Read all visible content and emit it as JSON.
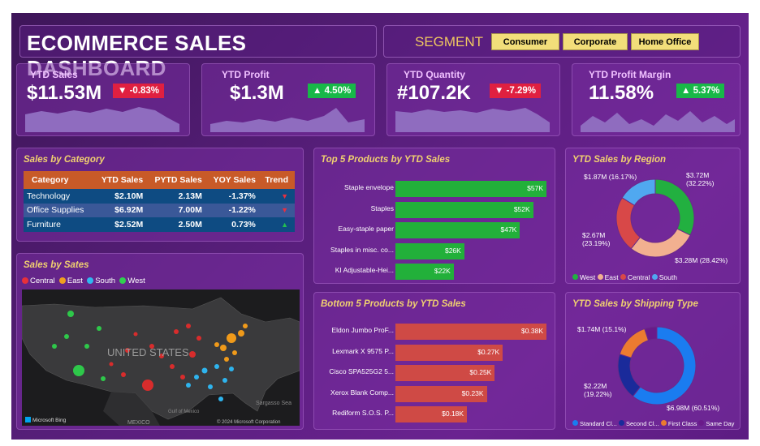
{
  "header": {
    "title": "ECOMMERCE SALES DASHBOARD"
  },
  "segment": {
    "label": "SEGMENT",
    "options": [
      "Consumer",
      "Corporate",
      "Home Office"
    ]
  },
  "kpis": [
    {
      "title": "YTD Sales",
      "value": "$11.53M",
      "change": "-0.83%",
      "direction": "down"
    },
    {
      "title": "YTD Profit",
      "value": "$1.3M",
      "change": "4.50%",
      "direction": "up"
    },
    {
      "title": "YTD Quantity",
      "value": "#107.2K",
      "change": "-7.29%",
      "direction": "down"
    },
    {
      "title": "YTD Profit Margin",
      "value": "11.58%",
      "change": "5.37%",
      "direction": "up"
    }
  ],
  "category": {
    "title": "Sales by Category",
    "headers": [
      "Category",
      "YTD Sales",
      "PYTD Sales",
      "YOY Sales",
      "Trend"
    ],
    "rows": [
      {
        "category": "Technology",
        "ytd": "$2.10M",
        "pytd": "2.13M",
        "yoy": "-1.37%",
        "trend": "down"
      },
      {
        "category": "Office Supplies",
        "ytd": "$6.92M",
        "pytd": "7.00M",
        "yoy": "-1.22%",
        "trend": "down"
      },
      {
        "category": "Furniture",
        "ytd": "$2.52M",
        "pytd": "2.50M",
        "yoy": "0.73%",
        "trend": "up"
      }
    ]
  },
  "states": {
    "title": "Sales by Sates",
    "legend": [
      {
        "name": "Central",
        "color": "#e8303a"
      },
      {
        "name": "East",
        "color": "#f0a020"
      },
      {
        "name": "South",
        "color": "#30b8f0"
      },
      {
        "name": "West",
        "color": "#30d050"
      }
    ],
    "map_labels": {
      "country": "UNITED STATES",
      "mexico": "MEXICO",
      "gulf": "Gulf of Mexico",
      "sea": "Sargasso Sea",
      "bing": "Microsoft Bing",
      "copyright": "© 2024 Microsoft Corporation"
    }
  },
  "top5": {
    "title": "Top 5 Products by YTD Sales",
    "chart_data": {
      "type": "bar",
      "categories": [
        "Staple envelope",
        "Staples",
        "Easy-staple paper",
        "Staples in misc. co...",
        "KI Adjustable-Hei..."
      ],
      "values": [
        57,
        52,
        47,
        26,
        22
      ],
      "value_labels": [
        "$57K",
        "$52K",
        "$47K",
        "$26K",
        "$22K"
      ],
      "unit": "K USD"
    }
  },
  "bottom5": {
    "title": "Bottom 5 Products by YTD Sales",
    "chart_data": {
      "type": "bar",
      "categories": [
        "Eldon Jumbo ProF...",
        "Lexmark X 9575 P...",
        "Cisco SPA525G2 5...",
        "Xerox Blank Comp...",
        "Rediform S.O.S. P..."
      ],
      "values": [
        0.38,
        0.27,
        0.25,
        0.23,
        0.18
      ],
      "value_labels": [
        "$0.38K",
        "$0.27K",
        "$0.25K",
        "$0.23K",
        "$0.18K"
      ],
      "unit": "K USD"
    }
  },
  "region": {
    "title": "YTD Sales by Region",
    "chart_data": {
      "type": "pie",
      "categories": [
        "West",
        "East",
        "Central",
        "South"
      ],
      "values": [
        3.72,
        3.28,
        2.67,
        1.87
      ],
      "percent": [
        32.22,
        28.42,
        23.19,
        16.17
      ],
      "colors": [
        "#22b040",
        "#f2b090",
        "#d84848",
        "#50a8f0"
      ]
    },
    "labels": {
      "west": "$3.72M",
      "west_pct": "(32.22%)",
      "east": "$3.28M (28.42%)",
      "central": "$2.67M",
      "central_pct": "(23.19%)",
      "south": "$1.87M (16.17%)"
    }
  },
  "shipping": {
    "title": "YTD Sales by Shipping Type",
    "chart_data": {
      "type": "pie",
      "categories": [
        "Standard Cl...",
        "Second Cl...",
        "First Class",
        "Same Day"
      ],
      "values": [
        6.98,
        2.22,
        1.74,
        0.59
      ],
      "percent": [
        60.51,
        19.22,
        15.1,
        5.17
      ],
      "colors": [
        "#1a7cf0",
        "#1a2a9a",
        "#ec7b30",
        "#6a1a8a"
      ]
    },
    "labels": {
      "standard": "$6.98M (60.51%)",
      "second": "$2.22M",
      "second_pct": "(19.22%)",
      "first": "$1.74M (15.1%)"
    }
  }
}
